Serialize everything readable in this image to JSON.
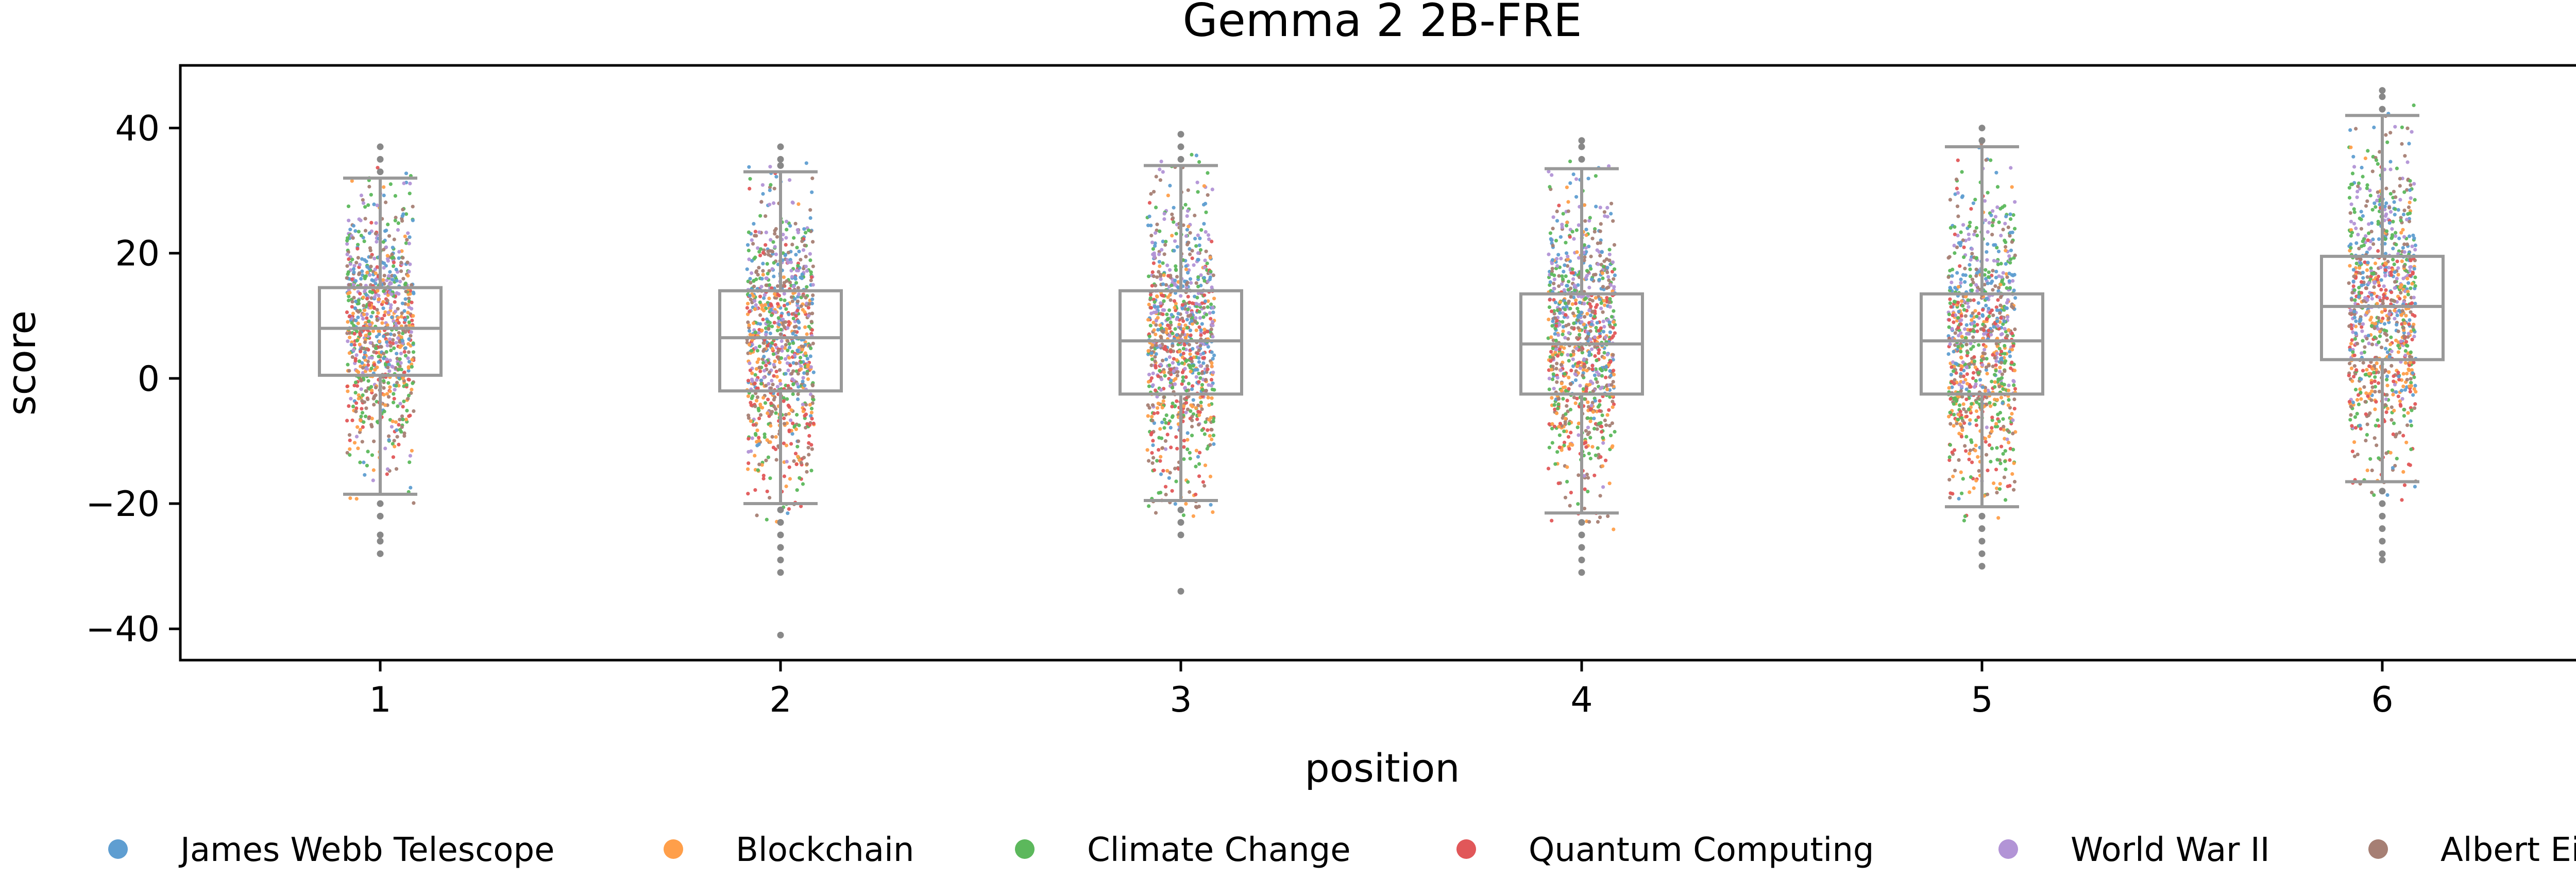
{
  "chart_data": {
    "type": "box-strip",
    "title": "Gemma 2 2B-FRE",
    "xlabel": "position",
    "ylabel": "score",
    "categories": [
      "1",
      "2",
      "3",
      "4",
      "5",
      "6"
    ],
    "ylim": [
      -45,
      50
    ],
    "yticks": [
      -40,
      -20,
      0,
      20,
      40
    ],
    "ytick_labels": [
      "−40",
      "−20",
      "0",
      "20",
      "40"
    ],
    "grid": false,
    "legend_position": "bottom",
    "series": [
      {
        "name": "James Webb Telescope",
        "color": "#5f9ed1"
      },
      {
        "name": "Blockchain",
        "color": "#ff9f4a"
      },
      {
        "name": "Climate Change",
        "color": "#5cb85c"
      },
      {
        "name": "Quantum Computing",
        "color": "#e15759"
      },
      {
        "name": "World War II",
        "color": "#b294d6"
      },
      {
        "name": "Albert Einstein",
        "color": "#a67f74"
      }
    ],
    "boxes": [
      {
        "category": "1",
        "q1": 0.5,
        "median": 8,
        "q3": 14.5,
        "whisker_low": -18.5,
        "whisker_high": 32,
        "outliers": [
          -20,
          -22,
          -25,
          -26,
          -28,
          33,
          35,
          37
        ]
      },
      {
        "category": "2",
        "q1": -2,
        "median": 6.5,
        "q3": 14,
        "whisker_low": -20,
        "whisker_high": 33,
        "outliers": [
          -21,
          -23,
          -25,
          -27,
          -29,
          -31,
          -41,
          34,
          35,
          37
        ]
      },
      {
        "category": "3",
        "q1": -2.5,
        "median": 6,
        "q3": 14,
        "whisker_low": -19.5,
        "whisker_high": 34,
        "outliers": [
          -21,
          -23,
          -25,
          -34,
          35,
          37,
          39
        ]
      },
      {
        "category": "4",
        "q1": -2.5,
        "median": 5.5,
        "q3": 13.5,
        "whisker_low": -21.5,
        "whisker_high": 33.5,
        "outliers": [
          -23,
          -25,
          -27,
          -29,
          -31,
          35,
          37,
          38
        ]
      },
      {
        "category": "5",
        "q1": -2.5,
        "median": 6,
        "q3": 13.5,
        "whisker_low": -20.5,
        "whisker_high": 37,
        "outliers": [
          -22,
          -24,
          -26,
          -28,
          -30,
          38,
          40
        ]
      },
      {
        "category": "6",
        "q1": 3,
        "median": 11.5,
        "q3": 19.5,
        "whisker_low": -16.5,
        "whisker_high": 42,
        "outliers": [
          -18,
          -20,
          -22,
          -24,
          -26,
          -28,
          -29,
          43,
          45,
          46
        ]
      }
    ],
    "point_color_mix": {
      "upper_region": [
        "James Webb Telescope",
        "World War II",
        "Climate Change",
        "Albert Einstein"
      ],
      "lower_region": [
        "Quantum Computing",
        "Blockchain",
        "Climate Change",
        "Albert Einstein"
      ]
    }
  }
}
